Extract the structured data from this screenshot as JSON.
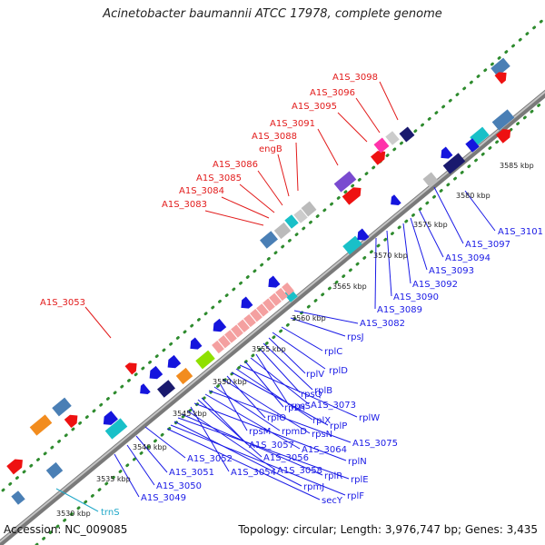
{
  "title": "Acinetobacter baumannii ATCC 17978, complete genome",
  "accession": "Accession: NC_009085",
  "summary": "Topology: circular; Length: 3,976,747 bp; Genes: 3,435",
  "ticks": [
    "3530 kbp",
    "3535 kbp",
    "3540 kbp",
    "3545 kbp",
    "3550 kbp",
    "3555 kbp",
    "3560 kbp",
    "3565 kbp",
    "3570 kbp",
    "3575 kbp",
    "3580 kbp",
    "3585 kbp"
  ],
  "top_labels": [
    "A1S_3098",
    "A1S_3096",
    "A1S_3095",
    "A1S_3091",
    "A1S_3088",
    "engB",
    "A1S_3086",
    "A1S_3085",
    "A1S_3084",
    "A1S_3083",
    "A1S_3053"
  ],
  "bottom_labels": [
    "A1S_3101",
    "A1S_3097",
    "A1S_3094",
    "A1S_3093",
    "A1S_3092",
    "A1S_3090",
    "A1S_3089",
    "A1S_3082",
    "rpsJ",
    "rplC",
    "rplD",
    "rplV",
    "rplB",
    "rpsQ",
    "rpsS",
    "A1S_3073",
    "rpsH",
    "rplW",
    "rplX",
    "rplP",
    "rplO",
    "rpsN",
    "rpsM",
    "rpmD",
    "A1S_3075",
    "A1S_3064",
    "A1S_3057",
    "A1S_3056",
    "A1S_3052",
    "rplN",
    "A1S_3054",
    "A1S_3058",
    "rplR",
    "rplE",
    "A1S_3051",
    "A1S_3050",
    "A1S_3049",
    "rpmJ",
    "rplF",
    "secY"
  ],
  "rna_labels": [
    "trnS"
  ],
  "colors": {
    "forward": "#ee1111",
    "reverse": "#1515dd",
    "rrna": "#f4a0a0",
    "teal": "#19c0c8",
    "navy": "#1a1a6e",
    "orange": "#f28c1e",
    "steel": "#4a7fb5",
    "purple": "#7a4bd0",
    "backbone": "#8a8a8a",
    "dots": "#2e8b2e"
  }
}
